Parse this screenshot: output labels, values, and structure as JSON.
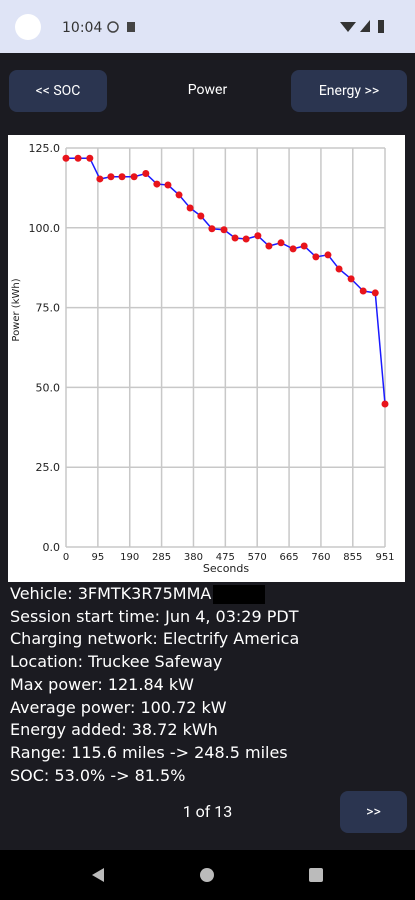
{
  "status_bar": {
    "time": "10:04"
  },
  "nav": {
    "prev": "<< SOC",
    "next": "Energy >>"
  },
  "chart_data": {
    "type": "line",
    "title": "Power",
    "x_label": "Seconds",
    "y_label": "Power (kWh)",
    "x": [
      0,
      36,
      71,
      101,
      134,
      167,
      203,
      238,
      271,
      304,
      337,
      370,
      402,
      435,
      471,
      504,
      537,
      572,
      605,
      641,
      677,
      710,
      745,
      781,
      814,
      850,
      886,
      922,
      951
    ],
    "series": [
      {
        "name": "Power",
        "color": "#1a1aff",
        "marker_color": "#e8141b",
        "values": [
          121.8,
          121.8,
          121.8,
          115.3,
          116,
          116,
          116,
          117,
          113.7,
          113.4,
          110.3,
          106.2,
          103.7,
          99.7,
          99.4,
          96.8,
          96.5,
          97.5,
          94.3,
          95.3,
          93.4,
          94.3,
          90.9,
          91.5,
          87.1,
          84.0,
          80.2,
          79.6,
          44.8
        ]
      }
    ],
    "xlim": [
      0,
      951
    ],
    "ylim": [
      0,
      125
    ],
    "xticks": [
      0,
      95,
      190,
      285,
      380,
      475,
      570,
      665,
      760,
      855,
      951
    ],
    "yticks": [
      {
        "value": 0,
        "label": "0.0"
      },
      {
        "value": 25,
        "label": "25.0"
      },
      {
        "value": 50,
        "label": "50.0"
      },
      {
        "value": 75,
        "label": "75.0"
      },
      {
        "value": 100,
        "label": "100.0"
      },
      {
        "value": 125,
        "label": "125.0"
      }
    ],
    "grid": true
  },
  "info": [
    "Vehicle: 3FMTK3R75MMA",
    "Session start time: Jun 4, 03:29 PDT",
    "Charging network: Electrify America",
    "Location: Truckee Safeway",
    "Max power: 121.84 kW",
    "Average power: 100.72 kW",
    "Energy added: 38.72 kWh",
    "Range: 115.6 miles -> 248.5 miles",
    "SOC: 53.0% -> 81.5%"
  ],
  "pager": {
    "text": "1 of 13",
    "next": ">>"
  }
}
